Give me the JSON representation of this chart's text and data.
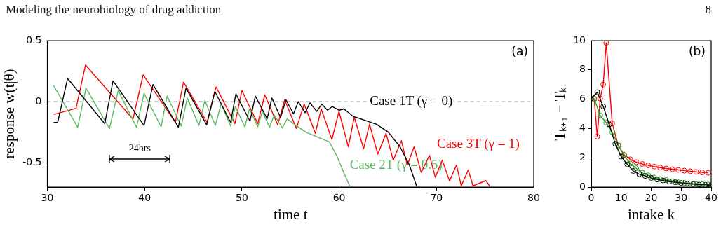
{
  "chart_data": [
    {
      "type": "line",
      "xlabel": "time t",
      "ylabel": "response w(t|θ)",
      "xlim": [
        30,
        80
      ],
      "xticks": [
        30,
        40,
        50,
        60,
        70,
        80
      ],
      "ylim": [
        -0.7,
        0.5
      ],
      "yticks": [
        -0.5,
        0,
        0.5
      ],
      "grid": false,
      "legend": false,
      "marker": "none",
      "ref_lines": [
        {
          "axis": "y",
          "value": 0,
          "color": "#999999",
          "line_style": "dashed"
        }
      ],
      "annotations": [
        "Modeling the neurobiology of drug addiction",
        "8",
        "(a)",
        "24hrs"
      ],
      "series": [
        {
          "name": "Case 1T (γ = 0)",
          "color": "#000000",
          "x": [
            30.65,
            31.06,
            32.08,
            35.9,
            36.75,
            39.94,
            40.86,
            43.47,
            44.25,
            46.38,
            47.22,
            48.84,
            49.38,
            50.83,
            51.38,
            52.6,
            53.08,
            53.97,
            54.53,
            55.3,
            55.8,
            56.5,
            57.0,
            57.7,
            58.2,
            58.8,
            59.3,
            60.0,
            60.5,
            61.42,
            63.84,
            65.05,
            66.26,
            67.22,
            67.95
          ],
          "values": [
            -0.17,
            -0.17,
            0.19,
            -0.18,
            0.17,
            -0.195,
            0.14,
            -0.21,
            0.11,
            -0.19,
            0.084,
            -0.17,
            0.063,
            -0.16,
            0.046,
            -0.14,
            0.03,
            -0.13,
            0.015,
            -0.1,
            0.0,
            -0.09,
            -0.01,
            -0.08,
            -0.02,
            -0.07,
            -0.04,
            -0.07,
            -0.06,
            -0.12,
            -0.185,
            -0.25,
            -0.37,
            -0.52,
            -0.69
          ]
        },
        {
          "name": "Case 2T (γ = 0.5)",
          "color": "#5cb85c",
          "x": [
            30.65,
            33.12,
            33.97,
            36.39,
            37.28,
            39.17,
            39.94,
            41.7,
            42.31,
            43.77,
            44.38,
            45.58,
            46.19,
            47.27,
            47.87,
            48.84,
            49.32,
            50.3,
            50.78,
            51.63,
            52.1,
            52.84,
            53.32,
            54.16,
            54.65,
            55.38,
            56.58,
            57.79,
            59.0,
            59.73,
            60.46,
            61.07
          ],
          "values": [
            0.13,
            -0.21,
            0.11,
            -0.22,
            0.09,
            -0.21,
            0.067,
            -0.206,
            0.046,
            -0.2,
            0.03,
            -0.195,
            0.008,
            -0.195,
            -0.017,
            -0.2,
            -0.04,
            -0.206,
            -0.06,
            -0.206,
            -0.08,
            -0.21,
            -0.11,
            -0.216,
            -0.14,
            -0.185,
            -0.25,
            -0.29,
            -0.33,
            -0.44,
            -0.58,
            -0.69
          ]
        },
        {
          "name": "Case 3T (γ = 1)",
          "color": "#ff0000",
          "x": [
            30.65,
            32.95,
            33.92,
            38.8,
            39.85,
            43.16,
            44.0,
            46.42,
            47.34,
            49.28,
            50.0,
            51.63,
            52.35,
            53.68,
            54.4,
            55.6,
            56.4,
            57.55,
            58.15,
            59.25,
            59.98,
            60.94,
            61.55,
            62.51,
            63.12,
            63.97,
            64.82,
            65.55,
            66.4,
            67.0,
            67.7,
            68.43,
            69.28,
            69.88,
            70.6,
            71.34,
            72.06,
            72.55,
            73.27,
            73.76,
            75.09,
            75.45
          ],
          "values": [
            -0.105,
            -0.055,
            0.3,
            -0.143,
            0.22,
            -0.17,
            0.16,
            -0.17,
            0.12,
            -0.18,
            0.09,
            -0.18,
            0.055,
            -0.19,
            0.015,
            -0.22,
            -0.02,
            -0.26,
            -0.06,
            -0.31,
            -0.08,
            -0.37,
            -0.126,
            -0.385,
            -0.185,
            -0.43,
            -0.26,
            -0.48,
            -0.32,
            -0.52,
            -0.37,
            -0.58,
            -0.44,
            -0.62,
            -0.48,
            -0.65,
            -0.52,
            -0.69,
            -0.56,
            -0.69,
            -0.647,
            -0.69
          ]
        }
      ]
    },
    {
      "type": "line",
      "xlabel": "intake k",
      "ylabel": "Tₖ₊₁ − Tₖ",
      "xlim": [
        0,
        40
      ],
      "xticks": [
        0,
        10,
        20,
        30,
        40
      ],
      "ylim": [
        0,
        10
      ],
      "yticks": [
        0,
        2,
        4,
        6,
        8,
        10
      ],
      "grid": false,
      "legend": false,
      "marker": "circle",
      "annotations": [
        "(b)"
      ],
      "series": [
        {
          "color": "#000000",
          "x": [
            0,
            2,
            4,
            6,
            8,
            10,
            12,
            14,
            16,
            18,
            20,
            22,
            24,
            26,
            28,
            30,
            32,
            34,
            36,
            38,
            40
          ],
          "values": [
            6.04,
            6.48,
            5.5,
            4.28,
            2.96,
            2.08,
            1.55,
            1.1,
            0.88,
            0.76,
            0.62,
            0.52,
            0.45,
            0.38,
            0.33,
            0.28,
            0.24,
            0.2,
            0.17,
            0.15,
            0.13
          ]
        },
        {
          "color": "#22a022",
          "x": [
            1,
            3,
            5,
            7,
            9,
            11,
            13,
            15,
            17,
            19,
            21,
            23,
            25,
            27,
            29,
            31,
            33,
            35,
            37,
            39
          ],
          "values": [
            6.0,
            4.9,
            4.4,
            3.75,
            2.87,
            2.15,
            1.6,
            1.28,
            0.98,
            0.8,
            0.66,
            0.55,
            0.48,
            0.4,
            0.33,
            0.29,
            0.25,
            0.22,
            0.2,
            0.18
          ]
        },
        {
          "color": "#ff0000",
          "x": [
            1,
            2,
            3,
            4,
            5,
            7,
            9,
            11,
            13,
            15,
            17,
            19,
            21,
            23,
            25,
            27,
            29,
            31,
            33,
            35,
            37,
            39
          ],
          "values": [
            6.04,
            3.45,
            6.04,
            7.0,
            9.85,
            4.35,
            2.85,
            2.2,
            1.9,
            1.7,
            1.58,
            1.48,
            1.4,
            1.33,
            1.27,
            1.22,
            1.17,
            1.12,
            1.08,
            1.04,
            1.0,
            0.97
          ]
        }
      ]
    }
  ]
}
